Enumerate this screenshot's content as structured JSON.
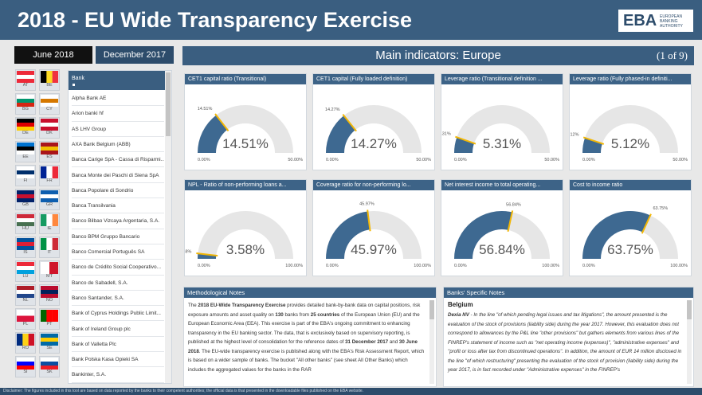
{
  "header": {
    "title": "2018 - EU Wide Transparency Exercise",
    "logo": "EBA",
    "logo_sub": "EUROPEAN BANKING AUTHORITY"
  },
  "tabs": [
    {
      "label": "June 2018",
      "active": true
    },
    {
      "label": "December 2017",
      "active": false
    }
  ],
  "flags": [
    {
      "code": "AT",
      "colors": [
        "#ed2939",
        "#ffffff",
        "#ed2939"
      ],
      "stripes": "h"
    },
    {
      "code": "BE",
      "colors": [
        "#000000",
        "#fdda24",
        "#ef3340"
      ],
      "stripes": "v"
    },
    {
      "code": "BG",
      "colors": [
        "#ffffff",
        "#00966e",
        "#d62612"
      ],
      "stripes": "h"
    },
    {
      "code": "CY",
      "colors": [
        "#ffffff",
        "#d57800",
        "#ffffff"
      ],
      "stripes": "h"
    },
    {
      "code": "DE",
      "colors": [
        "#000000",
        "#dd0000",
        "#ffce00"
      ],
      "stripes": "h"
    },
    {
      "code": "DK",
      "colors": [
        "#c8102e",
        "#ffffff",
        "#c8102e"
      ],
      "stripes": "h"
    },
    {
      "code": "EE",
      "colors": [
        "#0072ce",
        "#000000",
        "#ffffff"
      ],
      "stripes": "h"
    },
    {
      "code": "ES",
      "colors": [
        "#aa151b",
        "#f1bf00",
        "#aa151b"
      ],
      "stripes": "h"
    },
    {
      "code": "FI",
      "colors": [
        "#ffffff",
        "#002f6c",
        "#ffffff"
      ],
      "stripes": "h"
    },
    {
      "code": "FR",
      "colors": [
        "#002395",
        "#ffffff",
        "#ed2939"
      ],
      "stripes": "v"
    },
    {
      "code": "GB",
      "colors": [
        "#012169",
        "#c8102e",
        "#012169"
      ],
      "stripes": "h"
    },
    {
      "code": "GR",
      "colors": [
        "#0d5eaf",
        "#ffffff",
        "#0d5eaf"
      ],
      "stripes": "h"
    },
    {
      "code": "HU",
      "colors": [
        "#ce2939",
        "#ffffff",
        "#477050"
      ],
      "stripes": "h"
    },
    {
      "code": "IE",
      "colors": [
        "#169b62",
        "#ffffff",
        "#ff883e"
      ],
      "stripes": "v"
    },
    {
      "code": "IS",
      "colors": [
        "#02529c",
        "#dc1e35",
        "#02529c"
      ],
      "stripes": "h"
    },
    {
      "code": "IT",
      "colors": [
        "#009246",
        "#ffffff",
        "#ce2b37"
      ],
      "stripes": "v"
    },
    {
      "code": "LU",
      "colors": [
        "#ed2939",
        "#ffffff",
        "#00a1de"
      ],
      "stripes": "h"
    },
    {
      "code": "MT",
      "colors": [
        "#ffffff",
        "#cf142b"
      ],
      "stripes": "v"
    },
    {
      "code": "NL",
      "colors": [
        "#ae1c28",
        "#ffffff",
        "#21468b"
      ],
      "stripes": "h"
    },
    {
      "code": "NO",
      "colors": [
        "#ba0c2f",
        "#00205b",
        "#ba0c2f"
      ],
      "stripes": "h"
    },
    {
      "code": "PL",
      "colors": [
        "#ffffff",
        "#dc143c"
      ],
      "stripes": "h"
    },
    {
      "code": "PT",
      "colors": [
        "#006600",
        "#ff0000",
        "#ff0000"
      ],
      "stripes": "v"
    },
    {
      "code": "RO",
      "colors": [
        "#002b7f",
        "#fcd116",
        "#ce1126"
      ],
      "stripes": "v"
    },
    {
      "code": "SE",
      "colors": [
        "#006aa7",
        "#fecc00",
        "#006aa7"
      ],
      "stripes": "h"
    },
    {
      "code": "SI",
      "colors": [
        "#ffffff",
        "#0000ff",
        "#ff0000"
      ],
      "stripes": "h"
    },
    {
      "code": "SK",
      "colors": [
        "#ffffff",
        "#0b4ea2",
        "#ee1c25"
      ],
      "stripes": "h"
    }
  ],
  "bank_list": {
    "header": "Bank",
    "items": [
      "Alpha Bank AE",
      "Arion banki hf",
      "AS LHV Group",
      "AXA Bank Belgium (ABB)",
      "Banca Carige SpA - Cassa di Risparmi...",
      "Banca Monte dei Paschi di Siena SpA",
      "Banca Popolare di Sondrio",
      "Banca Transilvania",
      "Banco Bilbao Vizcaya Argentaria, S.A.",
      "Banco BPM Gruppo Bancario",
      "Banco Comercial Português SA",
      "Banco de Crédito Social Cooperativo...",
      "Banco de Sabadell, S.A.",
      "Banco Santander, S.A.",
      "Bank of Cyprus Holdings Public Limit...",
      "Bank of Ireland Group plc",
      "Bank of Valletta Plc",
      "Bank Polska Kasa Opieki SA",
      "Bankinter, S.A."
    ]
  },
  "main": {
    "title": "Main indicators: Europe",
    "page": "(1 of 9)"
  },
  "gauges": [
    {
      "title": "CET1 capital ratio (Transitional)",
      "value": 14.51,
      "value_label": "14.51%",
      "min": 0,
      "min_label": "0.00%",
      "max": 50,
      "max_label": "50.00%"
    },
    {
      "title": "CET1 capital (Fully loaded definition)",
      "value": 14.27,
      "value_label": "14.27%",
      "min": 0,
      "min_label": "0.00%",
      "max": 50,
      "max_label": "50.00%"
    },
    {
      "title": "Leverage ratio (Transitional definition ...",
      "value": 5.31,
      "value_label": "5.31%",
      "min": 0,
      "min_label": "0.00%",
      "max": 50,
      "max_label": "50.00%"
    },
    {
      "title": "Leverage ratio (Fully phased-in definiti...",
      "value": 5.12,
      "value_label": "5.12%",
      "min": 0,
      "min_label": "0.00%",
      "max": 50,
      "max_label": "50.00%"
    },
    {
      "title": "NPL - Ratio of non-performing loans a...",
      "value": 3.58,
      "value_label": "3.58%",
      "min": 0,
      "min_label": "0.00%",
      "max": 100,
      "max_label": "100.00%"
    },
    {
      "title": "Coverage ratio for non-performing lo...",
      "value": 45.97,
      "value_label": "45.97%",
      "min": 0,
      "min_label": "0.00%",
      "max": 100,
      "max_label": "100.00%"
    },
    {
      "title": "Net interest income to total operating...",
      "value": 56.84,
      "value_label": "56.84%",
      "min": 0,
      "min_label": "0.00%",
      "max": 100,
      "max_label": "100.00%"
    },
    {
      "title": "Cost to income ratio",
      "value": 63.75,
      "value_label": "63.75%",
      "min": 0,
      "min_label": "0.00%",
      "max": 100,
      "max_label": "100.00%"
    }
  ],
  "notes": {
    "title": "Methodological Notes",
    "paragraph": [
      {
        "text": "The "
      },
      {
        "text": "2018 EU-Wide Transparency Exercise",
        "bold": true
      },
      {
        "text": " provides detailed bank-by-bank data on capital positions, risk exposure amounts and asset quality on "
      },
      {
        "text": "130",
        "bold": true
      },
      {
        "text": " banks from "
      },
      {
        "text": "25 countries",
        "bold": true
      },
      {
        "text": " of the European Union (EU) and the European Economic Area (EEA). This exercise is part of the EBA's ongoing commitment to enhancing transparency in the EU banking sector. The data, that is exclusively based on supervisory reporting, is published at the highest level of consolidation for the reference dates of "
      },
      {
        "text": "31 December 2017",
        "bold": true
      },
      {
        "text": " and "
      },
      {
        "text": "30 June 2018",
        "bold": true
      },
      {
        "text": ". The EU-wide transparency exercise is published along with the EBA's Risk Assessment Report, which is based on a wider sample of banks. The bucket \"All other banks\" (see sheet All Other Banks) which includes the aggregated values for the banks in the RAR"
      }
    ]
  },
  "bank_notes": {
    "title": "Banks' Specific Notes",
    "country": "Belgium",
    "paragraph": [
      {
        "text": "Dexia NV",
        "bold": true
      },
      {
        "text": " - In the line \"of which pending legal issues and tax litigations\", the amount presented is the evaluation of the stock of provisions (liability side) during the year 2017. However, this evaluation does not correspond to allowances by the P&L line \"other provisions\" but gathers elements from various lines of the FINREP's statement of income such as \"net operating income (expenses)\", \"administrative expenses\" and \"profit or loss after tax from discontinued operations\". In addition, the amount of EUR 14 million disclosed in the line \"of which restructuring\" presenting the evaluation of the stock of provision (liability side) during the year 2017, is in fact recorded under \"Administrative expenses\" in the FINREP's"
      }
    ]
  },
  "footer": "Disclaimer: The figures included in this tool are based on data reported by the banks to their competent authorities; the official data is that presented in the downloadable files published on the EBA website."
}
